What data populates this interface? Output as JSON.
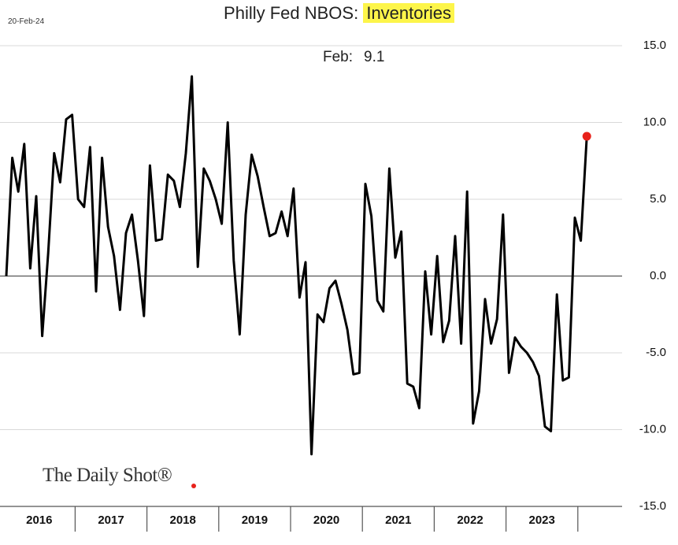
{
  "chart_data": {
    "type": "line",
    "title": "Philly Fed NBOS:",
    "title_highlight": "Inventories",
    "date": "20-Feb-24",
    "annotation": {
      "label": "Feb:",
      "value": "9.1"
    },
    "source": "The Daily Shot®",
    "categories": [
      null,
      null,
      null,
      null,
      null,
      null,
      "2016",
      null,
      null,
      null,
      null,
      null,
      null,
      null,
      null,
      null,
      null,
      null,
      "2017",
      null,
      null,
      null,
      null,
      null,
      null,
      null,
      null,
      null,
      null,
      null,
      "2018",
      null,
      null,
      null,
      null,
      null,
      null,
      null,
      null,
      null,
      null,
      null,
      "2019",
      null,
      null,
      null,
      null,
      null,
      null,
      null,
      null,
      null,
      null,
      null,
      "2020",
      null,
      null,
      null,
      null,
      null,
      null,
      null,
      null,
      null,
      null,
      null,
      "2021",
      null,
      null,
      null,
      null,
      null,
      null,
      null,
      null,
      null,
      null,
      null,
      "2022",
      null,
      null,
      null,
      null,
      null,
      null,
      null,
      null,
      null,
      null,
      null,
      "2023",
      null,
      null,
      null,
      null,
      null,
      null,
      null
    ],
    "series": [
      {
        "name": "Inventories",
        "color": "#000000",
        "highlight_color": "#e8221b",
        "values": [
          0,
          7.7,
          5.5,
          8.6,
          0.5,
          5.2,
          -3.9,
          1.5,
          8.0,
          6.1,
          10.2,
          10.5,
          5.0,
          4.5,
          8.4,
          -1.0,
          7.7,
          3.2,
          1.3,
          -2.2,
          2.8,
          4.0,
          1.0,
          -2.6,
          7.2,
          2.3,
          2.4,
          6.6,
          6.2,
          4.5,
          8.0,
          13.0,
          0.6,
          7.0,
          6.2,
          5.0,
          3.4,
          10.0,
          1.0,
          -3.8,
          4.0,
          7.9,
          6.5,
          4.5,
          2.6,
          2.8,
          4.2,
          2.6,
          5.7,
          -1.4,
          0.9,
          -11.6,
          -2.5,
          -3.0,
          -0.8,
          -0.3,
          -1.8,
          -3.5,
          -6.4,
          -6.3,
          6.0,
          3.9,
          -1.6,
          -2.3,
          7.0,
          1.2,
          2.9,
          -7.0,
          -7.2,
          -8.6,
          0.3,
          -3.8,
          1.3,
          -4.3,
          -2.9,
          2.6,
          -4.4,
          5.5,
          -9.6,
          -7.5,
          -1.5,
          -4.4,
          -2.8,
          4.0,
          -6.3,
          -4.0,
          -4.6,
          -5.0,
          -5.6,
          -6.5,
          -9.8,
          -10.1,
          -1.2,
          -6.8,
          -6.6,
          3.8,
          2.3,
          9.1
        ]
      }
    ],
    "ylim": [
      -15,
      15
    ],
    "yticks": [
      {
        "value": -15,
        "label": "-15.0"
      },
      {
        "value": -10,
        "label": "-10.0"
      },
      {
        "value": -5,
        "label": "-5.0"
      },
      {
        "value": 0,
        "label": "0.0"
      },
      {
        "value": 5,
        "label": "5.0"
      },
      {
        "value": 10,
        "label": "10.0"
      },
      {
        "value": 15,
        "label": "15.0"
      }
    ],
    "grid": true
  }
}
